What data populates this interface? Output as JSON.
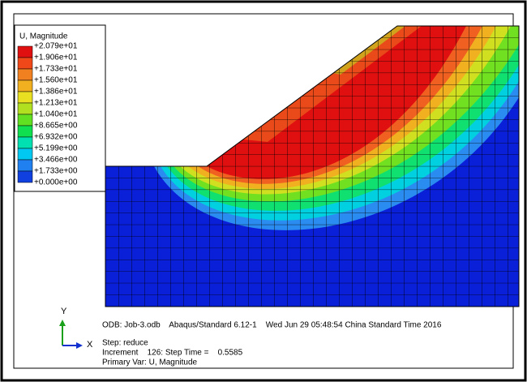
{
  "legend": {
    "title": "U, Magnitude",
    "labels": [
      "+2.079e+01",
      "+1.906e+01",
      "+1.733e+01",
      "+1.560e+01",
      "+1.386e+01",
      "+1.213e+01",
      "+1.040e+01",
      "+8.665e+00",
      "+6.932e+00",
      "+5.199e+00",
      "+3.466e+00",
      "+1.733e+00",
      "+0.000e+00"
    ]
  },
  "triad": {
    "y": "Y",
    "x": "X"
  },
  "info": {
    "odb": "ODB: Job-3.odb    Abaqus/Standard 6.12-1    Wed Jun 29 05:48:54 China Standard Time 2016",
    "step": "Step: reduce",
    "increment": "Increment    126: Step Time =    0.5585",
    "primary_var": "Primary Var: U, Magnitude"
  }
}
